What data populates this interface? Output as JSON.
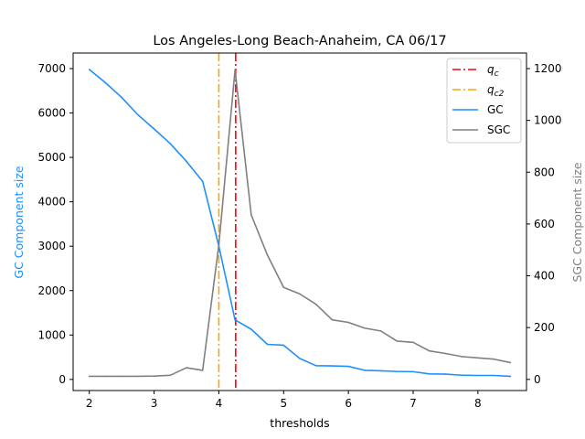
{
  "chart_data": {
    "type": "line",
    "title": "Los Angeles-Long Beach-Anaheim, CA 06/17",
    "xlabel": "thresholds",
    "ylabel_left": "GC Component size",
    "ylabel_right": "SGC Component size",
    "xlim": [
      1.75,
      8.75
    ],
    "ylim_left": [
      -250,
      7350
    ],
    "ylim_right": [
      -43,
      1260
    ],
    "x_ticks": [
      2,
      3,
      4,
      5,
      6,
      7,
      8
    ],
    "y_left_ticks": [
      0,
      1000,
      2000,
      3000,
      4000,
      5000,
      6000,
      7000
    ],
    "y_right_ticks": [
      0,
      200,
      400,
      600,
      800,
      1000,
      1200
    ],
    "grid": false,
    "legend_position": "top-right",
    "colors": {
      "gc": "#1e90ff",
      "sgc": "#808080",
      "qc": "#ff0000",
      "qc2": "#ffa500",
      "gc_axis_label": "#1e90ff",
      "sgc_axis_label": "#808080"
    },
    "vlines": [
      {
        "name": "q_c",
        "x": 4.26,
        "color": "#ff0000",
        "style": "dashdot"
      },
      {
        "name": "q_c2",
        "x": 4.0,
        "color": "#ffa500",
        "style": "dashdot"
      }
    ],
    "legend": [
      {
        "key": "qc",
        "main": "q",
        "sub": "c",
        "style": "dashdot",
        "color": "#ff0000"
      },
      {
        "key": "qc2",
        "main": "q",
        "sub": "c2",
        "style": "dashdot",
        "color": "#ffa500"
      },
      {
        "key": "gc",
        "main": "GC",
        "sub": "",
        "style": "solid",
        "color": "#1e90ff"
      },
      {
        "key": "sgc",
        "main": "SGC",
        "sub": "",
        "style": "solid",
        "color": "#808080"
      }
    ],
    "series": [
      {
        "name": "GC",
        "axis": "left",
        "x": [
          2.0,
          2.25,
          2.5,
          2.75,
          3.0,
          3.25,
          3.5,
          3.75,
          4.0,
          4.25,
          4.5,
          4.75,
          5.0,
          5.25,
          5.5,
          5.75,
          6.0,
          6.25,
          6.5,
          6.75,
          7.0,
          7.25,
          7.5,
          7.75,
          8.0,
          8.25,
          8.5
        ],
        "values": [
          6980,
          6680,
          6350,
          5960,
          5640,
          5310,
          4910,
          4460,
          3000,
          1340,
          1130,
          790,
          770,
          470,
          310,
          305,
          295,
          205,
          195,
          180,
          175,
          125,
          120,
          95,
          90,
          90,
          70
        ]
      },
      {
        "name": "SGC",
        "axis": "right",
        "x": [
          2.0,
          2.25,
          2.5,
          2.75,
          3.0,
          3.25,
          3.5,
          3.75,
          4.0,
          4.25,
          4.5,
          4.75,
          5.0,
          5.25,
          5.5,
          5.75,
          6.0,
          6.25,
          6.5,
          6.75,
          7.0,
          7.25,
          7.5,
          7.75,
          8.0,
          8.25,
          8.5
        ],
        "values": [
          12,
          12,
          12,
          12,
          13,
          16,
          45,
          35,
          520,
          1195,
          635,
          480,
          355,
          330,
          290,
          230,
          220,
          198,
          187,
          148,
          143,
          110,
          100,
          88,
          83,
          78,
          65
        ]
      }
    ]
  }
}
